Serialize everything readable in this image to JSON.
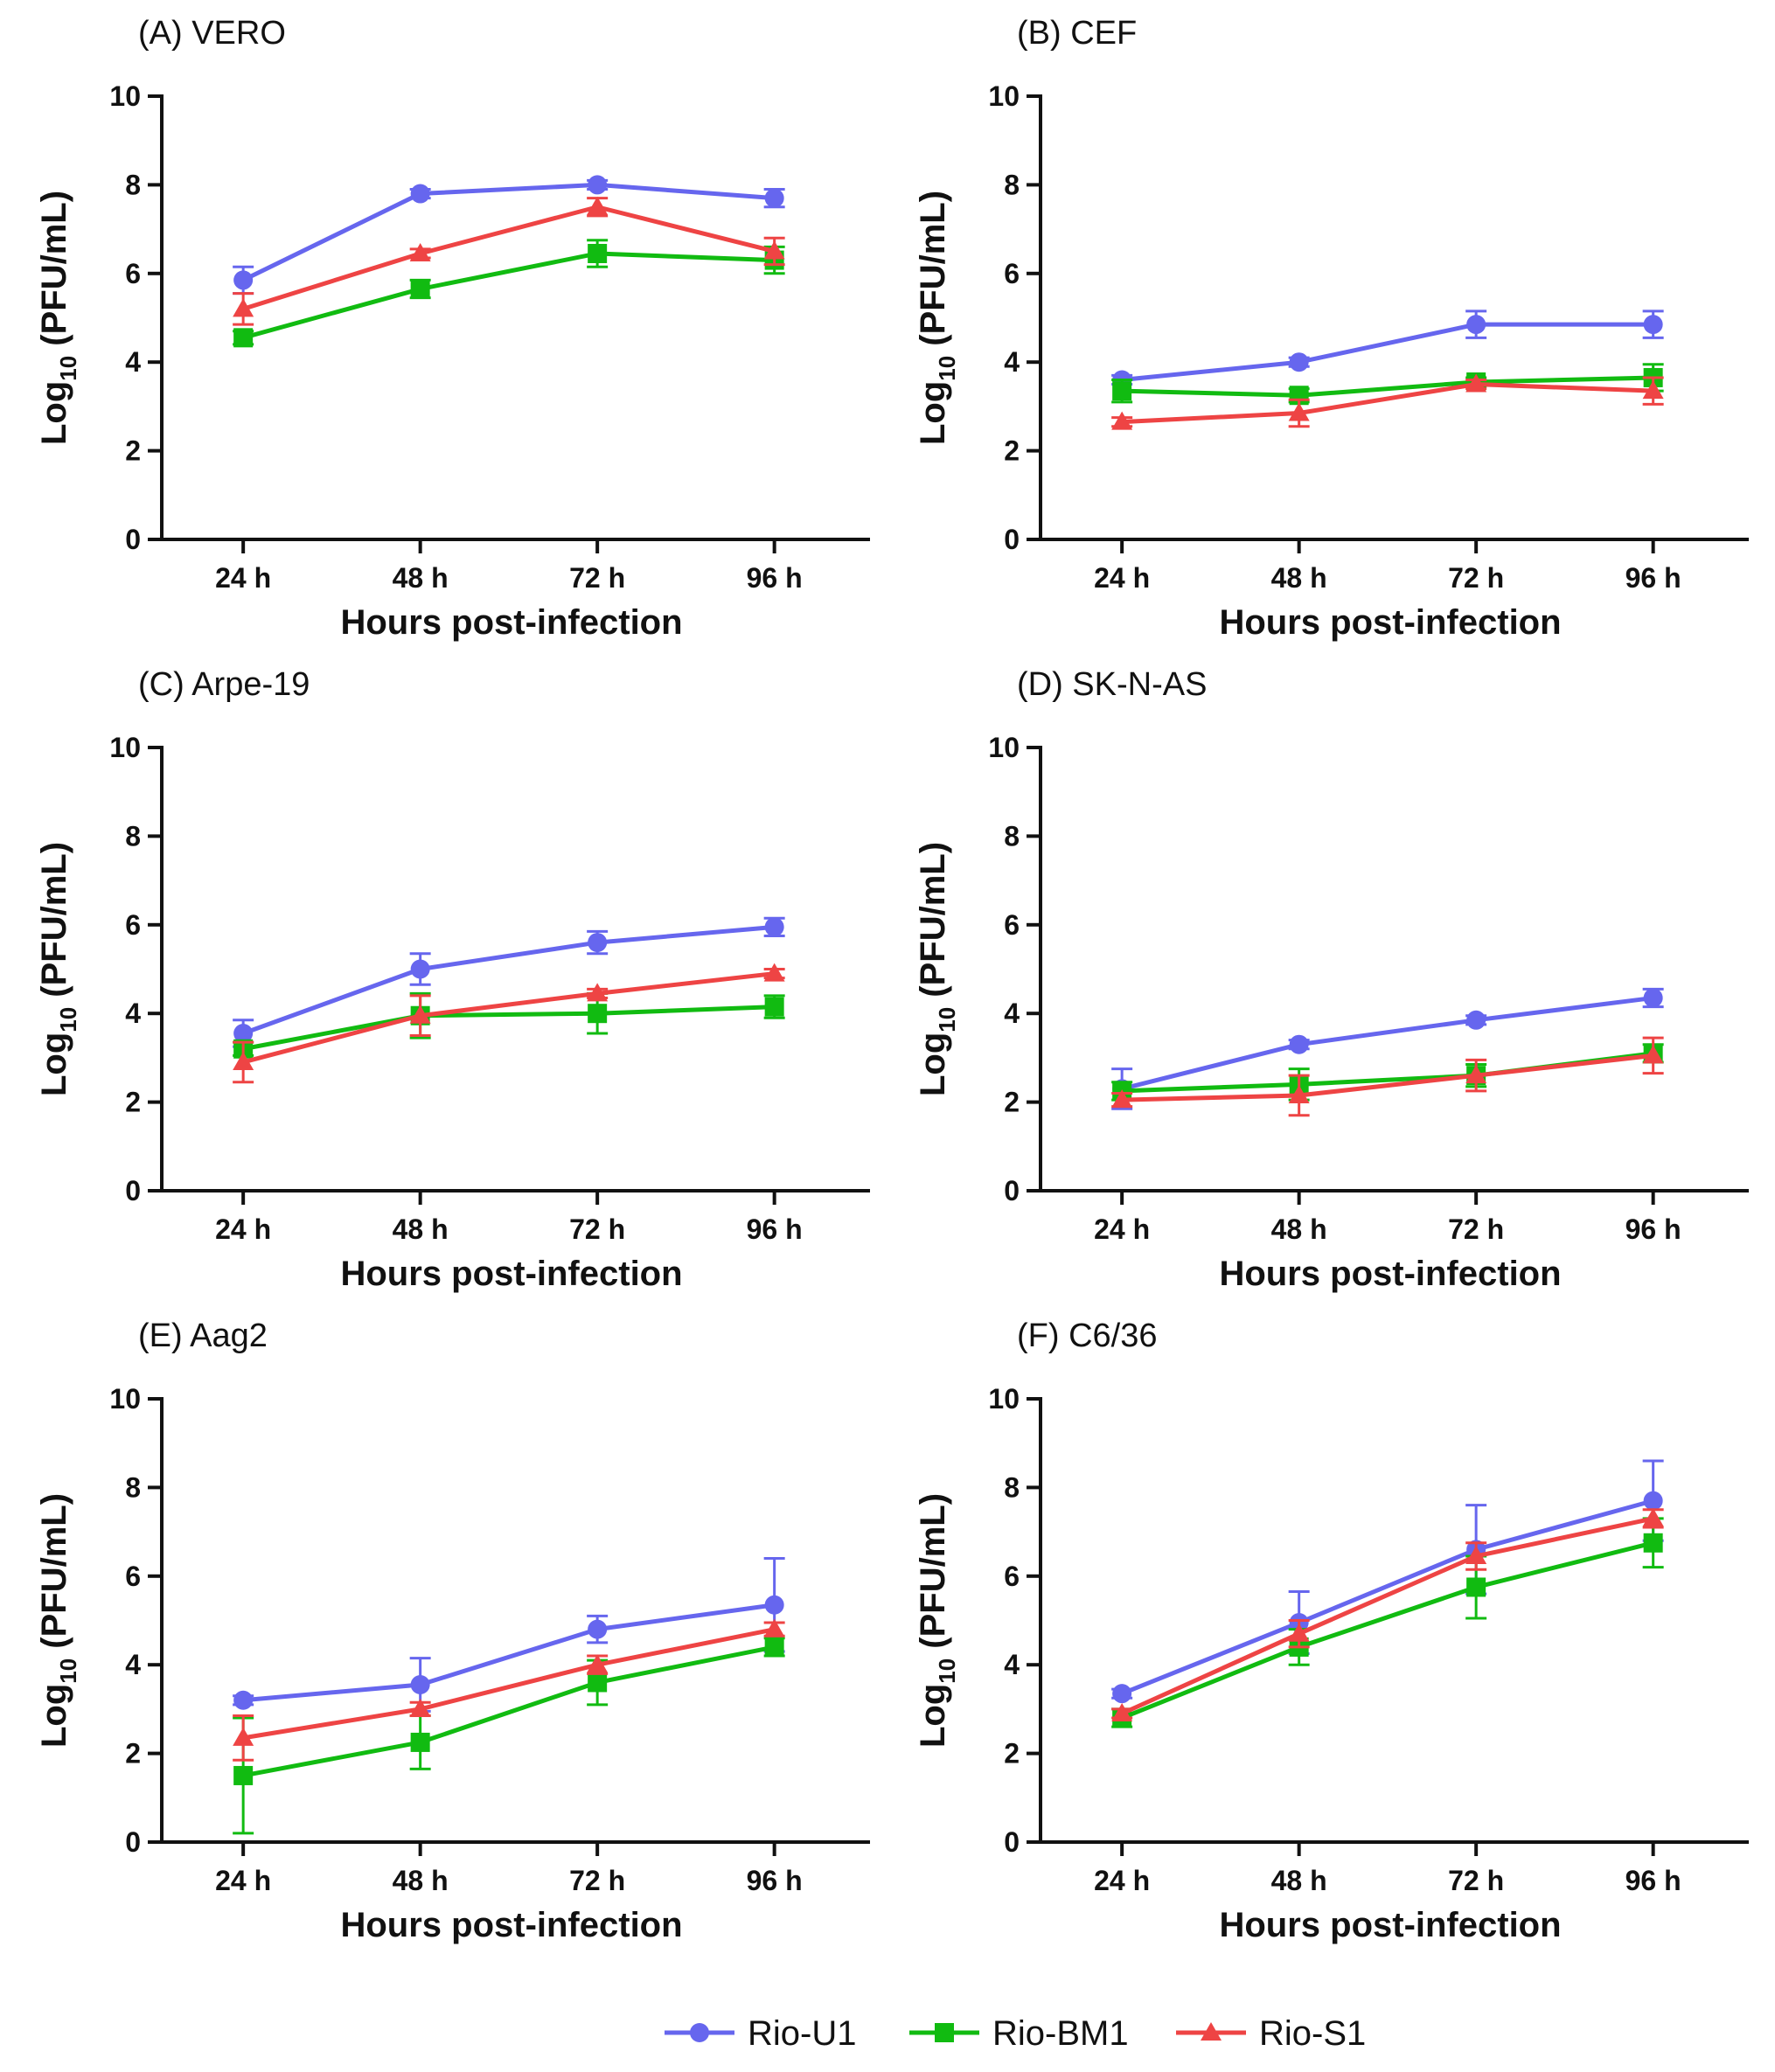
{
  "chart_data": [
    {
      "type": "line",
      "panel": "(A) VERO",
      "categories": [
        "24 h",
        "48 h",
        "72 h",
        "96 h"
      ],
      "xlabel": "Hours post-infection",
      "ylabel_prefix": "Log",
      "ylabel_subscript": "10",
      "ylabel_suffix": " (PFU/mL)",
      "ylim": [
        0,
        10
      ],
      "yticks": [
        "0",
        "2",
        "4",
        "6",
        "8",
        "10"
      ],
      "series": [
        {
          "name": "Rio-U1",
          "values": [
            5.85,
            7.8,
            8.0,
            7.7
          ],
          "errors": [
            0.3,
            0.1,
            0.1,
            0.2
          ]
        },
        {
          "name": "Rio-BM1",
          "values": [
            4.55,
            5.65,
            6.45,
            6.3
          ],
          "errors": [
            0.15,
            0.2,
            0.3,
            0.3
          ]
        },
        {
          "name": "Rio-S1",
          "values": [
            5.2,
            6.45,
            7.5,
            6.5
          ],
          "errors": [
            0.35,
            0.1,
            0.2,
            0.3
          ]
        }
      ]
    },
    {
      "type": "line",
      "panel": "(B) CEF",
      "categories": [
        "24 h",
        "48 h",
        "72 h",
        "96 h"
      ],
      "xlabel": "Hours post-infection",
      "ylabel_prefix": "Log",
      "ylabel_subscript": "10",
      "ylabel_suffix": " (PFU/mL)",
      "ylim": [
        0,
        10
      ],
      "yticks": [
        "0",
        "2",
        "4",
        "6",
        "8",
        "10"
      ],
      "series": [
        {
          "name": "Rio-U1",
          "values": [
            3.6,
            4.0,
            4.85,
            4.85
          ],
          "errors": [
            0.1,
            0.1,
            0.3,
            0.3
          ]
        },
        {
          "name": "Rio-BM1",
          "values": [
            3.35,
            3.25,
            3.55,
            3.65
          ],
          "errors": [
            0.25,
            0.15,
            0.1,
            0.3
          ]
        },
        {
          "name": "Rio-S1",
          "values": [
            2.65,
            2.85,
            3.5,
            3.35
          ],
          "errors": [
            0.1,
            0.3,
            0.1,
            0.3
          ]
        }
      ]
    },
    {
      "type": "line",
      "panel": "(C) Arpe-19",
      "categories": [
        "24 h",
        "48 h",
        "72 h",
        "96 h"
      ],
      "xlabel": "Hours post-infection",
      "ylabel_prefix": "Log",
      "ylabel_subscript": "10",
      "ylabel_suffix": " (PFU/mL)",
      "ylim": [
        0,
        10
      ],
      "yticks": [
        "0",
        "2",
        "4",
        "6",
        "8",
        "10"
      ],
      "series": [
        {
          "name": "Rio-U1",
          "values": [
            3.55,
            5.0,
            5.6,
            5.95
          ],
          "errors": [
            0.3,
            0.35,
            0.25,
            0.2
          ]
        },
        {
          "name": "Rio-BM1",
          "values": [
            3.2,
            3.95,
            4.0,
            4.15
          ],
          "errors": [
            0.15,
            0.5,
            0.45,
            0.25
          ]
        },
        {
          "name": "Rio-S1",
          "values": [
            2.9,
            3.95,
            4.45,
            4.9
          ],
          "errors": [
            0.45,
            0.45,
            0.1,
            0.1
          ]
        }
      ]
    },
    {
      "type": "line",
      "panel": "(D) SK-N-AS",
      "categories": [
        "24 h",
        "48 h",
        "72 h",
        "96 h"
      ],
      "xlabel": "Hours post-infection",
      "ylabel_prefix": "Log",
      "ylabel_subscript": "10",
      "ylabel_suffix": " (PFU/mL)",
      "ylim": [
        0,
        10
      ],
      "yticks": [
        "0",
        "2",
        "4",
        "6",
        "8",
        "10"
      ],
      "series": [
        {
          "name": "Rio-U1",
          "values": [
            2.3,
            3.3,
            3.85,
            4.35
          ],
          "errors": [
            0.45,
            0.1,
            0.1,
            0.2
          ]
        },
        {
          "name": "Rio-BM1",
          "values": [
            2.25,
            2.4,
            2.6,
            3.1
          ],
          "errors": [
            0.2,
            0.35,
            0.25,
            0.2
          ]
        },
        {
          "name": "Rio-S1",
          "values": [
            2.05,
            2.15,
            2.6,
            3.05
          ],
          "errors": [
            0.15,
            0.45,
            0.35,
            0.4
          ]
        }
      ]
    },
    {
      "type": "line",
      "panel": "(E) Aag2",
      "categories": [
        "24 h",
        "48 h",
        "72 h",
        "96 h"
      ],
      "xlabel": "Hours post-infection",
      "ylabel_prefix": "Log",
      "ylabel_subscript": "10",
      "ylabel_suffix": " (PFU/mL)",
      "ylim": [
        0,
        10
      ],
      "yticks": [
        "0",
        "2",
        "4",
        "6",
        "8",
        "10"
      ],
      "series": [
        {
          "name": "Rio-U1",
          "values": [
            3.2,
            3.55,
            4.8,
            5.35
          ],
          "errors": [
            0.1,
            0.6,
            0.3,
            1.05
          ]
        },
        {
          "name": "Rio-BM1",
          "values": [
            1.5,
            2.25,
            3.6,
            4.4
          ],
          "errors": [
            1.3,
            0.6,
            0.5,
            0.2
          ]
        },
        {
          "name": "Rio-S1",
          "values": [
            2.35,
            3.0,
            4.0,
            4.8
          ],
          "errors": [
            0.5,
            0.15,
            0.2,
            0.15
          ]
        }
      ]
    },
    {
      "type": "line",
      "panel": "(F) C6/36",
      "categories": [
        "24 h",
        "48 h",
        "72 h",
        "96 h"
      ],
      "xlabel": "Hours post-infection",
      "ylabel_prefix": "Log",
      "ylabel_subscript": "10",
      "ylabel_suffix": " (PFU/mL)",
      "ylim": [
        0,
        10
      ],
      "yticks": [
        "0",
        "2",
        "4",
        "6",
        "8",
        "10"
      ],
      "series": [
        {
          "name": "Rio-U1",
          "values": [
            3.35,
            4.95,
            6.6,
            7.7
          ],
          "errors": [
            0.1,
            0.7,
            1.0,
            0.9
          ]
        },
        {
          "name": "Rio-BM1",
          "values": [
            2.8,
            4.4,
            5.75,
            6.75
          ],
          "errors": [
            0.2,
            0.4,
            0.7,
            0.55
          ]
        },
        {
          "name": "Rio-S1",
          "values": [
            2.9,
            4.7,
            6.45,
            7.3
          ],
          "errors": [
            0.1,
            0.3,
            0.3,
            0.2
          ]
        }
      ]
    }
  ],
  "legend": [
    {
      "name": "Rio-U1",
      "marker": "circle",
      "color": "#6666ee"
    },
    {
      "name": "Rio-BM1",
      "marker": "square",
      "color": "#11bb11"
    },
    {
      "name": "Rio-S1",
      "marker": "triangle",
      "color": "#ee4444"
    }
  ],
  "colors": {
    "Rio-U1": "#6666ee",
    "Rio-BM1": "#11bb11",
    "Rio-S1": "#ee4444",
    "axis": "#111111"
  }
}
